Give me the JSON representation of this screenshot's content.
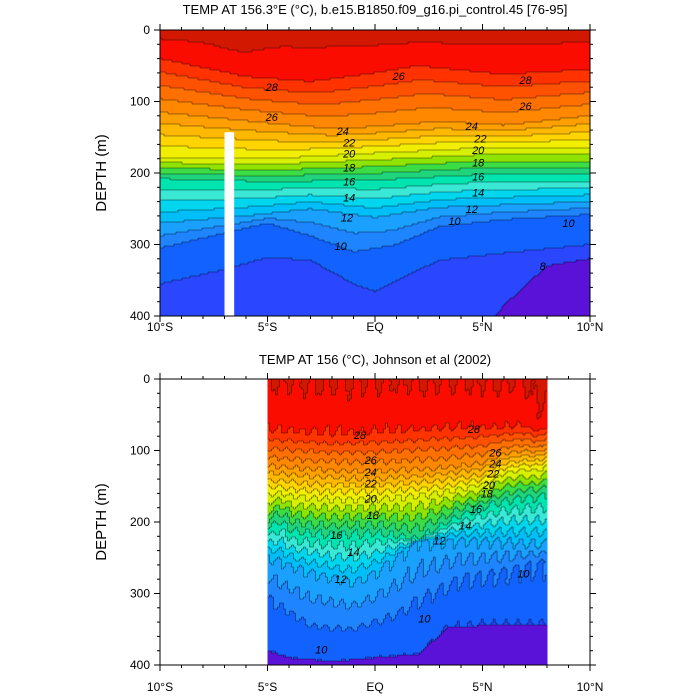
{
  "chart_data": [
    {
      "type": "contour",
      "title": "TEMP AT 156.3°E (°C), b.e15.B1850.f09_g16.pi_control.45 [76-95]",
      "ylabel": "DEPTH (m)",
      "xlim": [
        -10,
        10
      ],
      "ylim": [
        0,
        400
      ],
      "y_inverted": true,
      "x_ticks": [
        {
          "v": -10,
          "l": "10°S"
        },
        {
          "v": -5,
          "l": "5°S"
        },
        {
          "v": 0,
          "l": "EQ"
        },
        {
          "v": 5,
          "l": "5°N"
        },
        {
          "v": 10,
          "l": "10°N"
        }
      ],
      "y_ticks": [
        0,
        100,
        200,
        300,
        400
      ],
      "levels": [
        8,
        9,
        10,
        11,
        12,
        13,
        14,
        15,
        16,
        17,
        18,
        19,
        20,
        21,
        22,
        23,
        24,
        25,
        26,
        27,
        28,
        29
      ],
      "colors": [
        "#5a12d8",
        "#2a46ff",
        "#1262ff",
        "#1e84ff",
        "#1aa0ff",
        "#00bef8",
        "#00d6ee",
        "#3ae8d6",
        "#00e4b0",
        "#20d47c",
        "#3cdc44",
        "#8ee400",
        "#d6f000",
        "#f2ee00",
        "#ffd400",
        "#ffb800",
        "#ffa000",
        "#ff8800",
        "#ff7000",
        "#ff5200",
        "#ff3200",
        "#fa0c00",
        "#d21800"
      ],
      "contour_labels": [
        {
          "lat": -4.8,
          "depth": 80,
          "t": 28
        },
        {
          "lat": 1.1,
          "depth": 64,
          "t": 26
        },
        {
          "lat": 7,
          "depth": 70,
          "t": 28
        },
        {
          "lat": -4.8,
          "depth": 122,
          "t": 26
        },
        {
          "lat": 7,
          "depth": 106,
          "t": 26
        },
        {
          "lat": -1.5,
          "depth": 141,
          "t": 24
        },
        {
          "lat": 4.5,
          "depth": 134,
          "t": 24
        },
        {
          "lat": -1.2,
          "depth": 157,
          "t": 22
        },
        {
          "lat": 4.9,
          "depth": 152,
          "t": 22
        },
        {
          "lat": -1.2,
          "depth": 173,
          "t": 20
        },
        {
          "lat": 4.8,
          "depth": 168,
          "t": 20
        },
        {
          "lat": -1.2,
          "depth": 192,
          "t": 18
        },
        {
          "lat": 4.8,
          "depth": 185,
          "t": 18
        },
        {
          "lat": -1.2,
          "depth": 212,
          "t": 16
        },
        {
          "lat": 4.8,
          "depth": 205,
          "t": 16
        },
        {
          "lat": -1.2,
          "depth": 234,
          "t": 14
        },
        {
          "lat": 4.8,
          "depth": 227,
          "t": 14
        },
        {
          "lat": -1.3,
          "depth": 262,
          "t": 12
        },
        {
          "lat": 4.5,
          "depth": 250,
          "t": 12
        },
        {
          "lat": 3.7,
          "depth": 267,
          "t": 10
        },
        {
          "lat": -1.6,
          "depth": 302,
          "t": 10
        },
        {
          "lat": 9.0,
          "depth": 270,
          "t": 10
        },
        {
          "lat": 7.8,
          "depth": 330,
          "t": 8
        }
      ]
    },
    {
      "type": "contour",
      "title": "TEMP AT 156 (°C), Johnson et al (2002)",
      "ylabel": "DEPTH (m)",
      "xlim": [
        -10,
        10
      ],
      "ylim": [
        0,
        400
      ],
      "y_inverted": true,
      "data_lat_range": [
        -5,
        8
      ],
      "x_ticks": [
        {
          "v": -10,
          "l": "10°S"
        },
        {
          "v": -5,
          "l": "5°S"
        },
        {
          "v": 0,
          "l": "EQ"
        },
        {
          "v": 5,
          "l": "5°N"
        },
        {
          "v": 10,
          "l": "10°N"
        }
      ],
      "y_ticks": [
        0,
        100,
        200,
        300,
        400
      ],
      "levels": [
        8,
        9,
        10,
        11,
        12,
        13,
        14,
        15,
        16,
        17,
        18,
        19,
        20,
        21,
        22,
        23,
        24,
        25,
        26,
        27,
        28,
        29
      ],
      "colors": [
        "#5a12d8",
        "#2a46ff",
        "#1262ff",
        "#1e84ff",
        "#1aa0ff",
        "#00bef8",
        "#00d6ee",
        "#3ae8d6",
        "#00e4b0",
        "#20d47c",
        "#3cdc44",
        "#8ee400",
        "#d6f000",
        "#f2ee00",
        "#ffd400",
        "#ffb800",
        "#ffa000",
        "#ff8800",
        "#ff7000",
        "#ff5200",
        "#ff3200",
        "#fa0c00",
        "#d21800"
      ],
      "contour_labels": [
        {
          "lat": -0.7,
          "depth": 78,
          "t": 28
        },
        {
          "lat": 4.6,
          "depth": 70,
          "t": 28
        },
        {
          "lat": -0.2,
          "depth": 113,
          "t": 26
        },
        {
          "lat": 5.6,
          "depth": 103,
          "t": 26
        },
        {
          "lat": -0.2,
          "depth": 130,
          "t": 24
        },
        {
          "lat": 5.6,
          "depth": 118,
          "t": 24
        },
        {
          "lat": -0.2,
          "depth": 146,
          "t": 22
        },
        {
          "lat": 5.5,
          "depth": 132,
          "t": 22
        },
        {
          "lat": -0.2,
          "depth": 167,
          "t": 20
        },
        {
          "lat": 5.3,
          "depth": 148,
          "t": 20
        },
        {
          "lat": -0.1,
          "depth": 190,
          "t": 18
        },
        {
          "lat": 5.2,
          "depth": 160,
          "t": 18
        },
        {
          "lat": 4.7,
          "depth": 182,
          "t": 16
        },
        {
          "lat": -1.8,
          "depth": 218,
          "t": 16
        },
        {
          "lat": 4.2,
          "depth": 205,
          "t": 14
        },
        {
          "lat": -1.0,
          "depth": 242,
          "t": 14
        },
        {
          "lat": 3.0,
          "depth": 226,
          "t": 12
        },
        {
          "lat": -1.6,
          "depth": 280,
          "t": 12
        },
        {
          "lat": 6.9,
          "depth": 272,
          "t": 10
        },
        {
          "lat": 2.3,
          "depth": 335,
          "t": 10
        },
        {
          "lat": -2.5,
          "depth": 378,
          "t": 10
        }
      ]
    }
  ]
}
